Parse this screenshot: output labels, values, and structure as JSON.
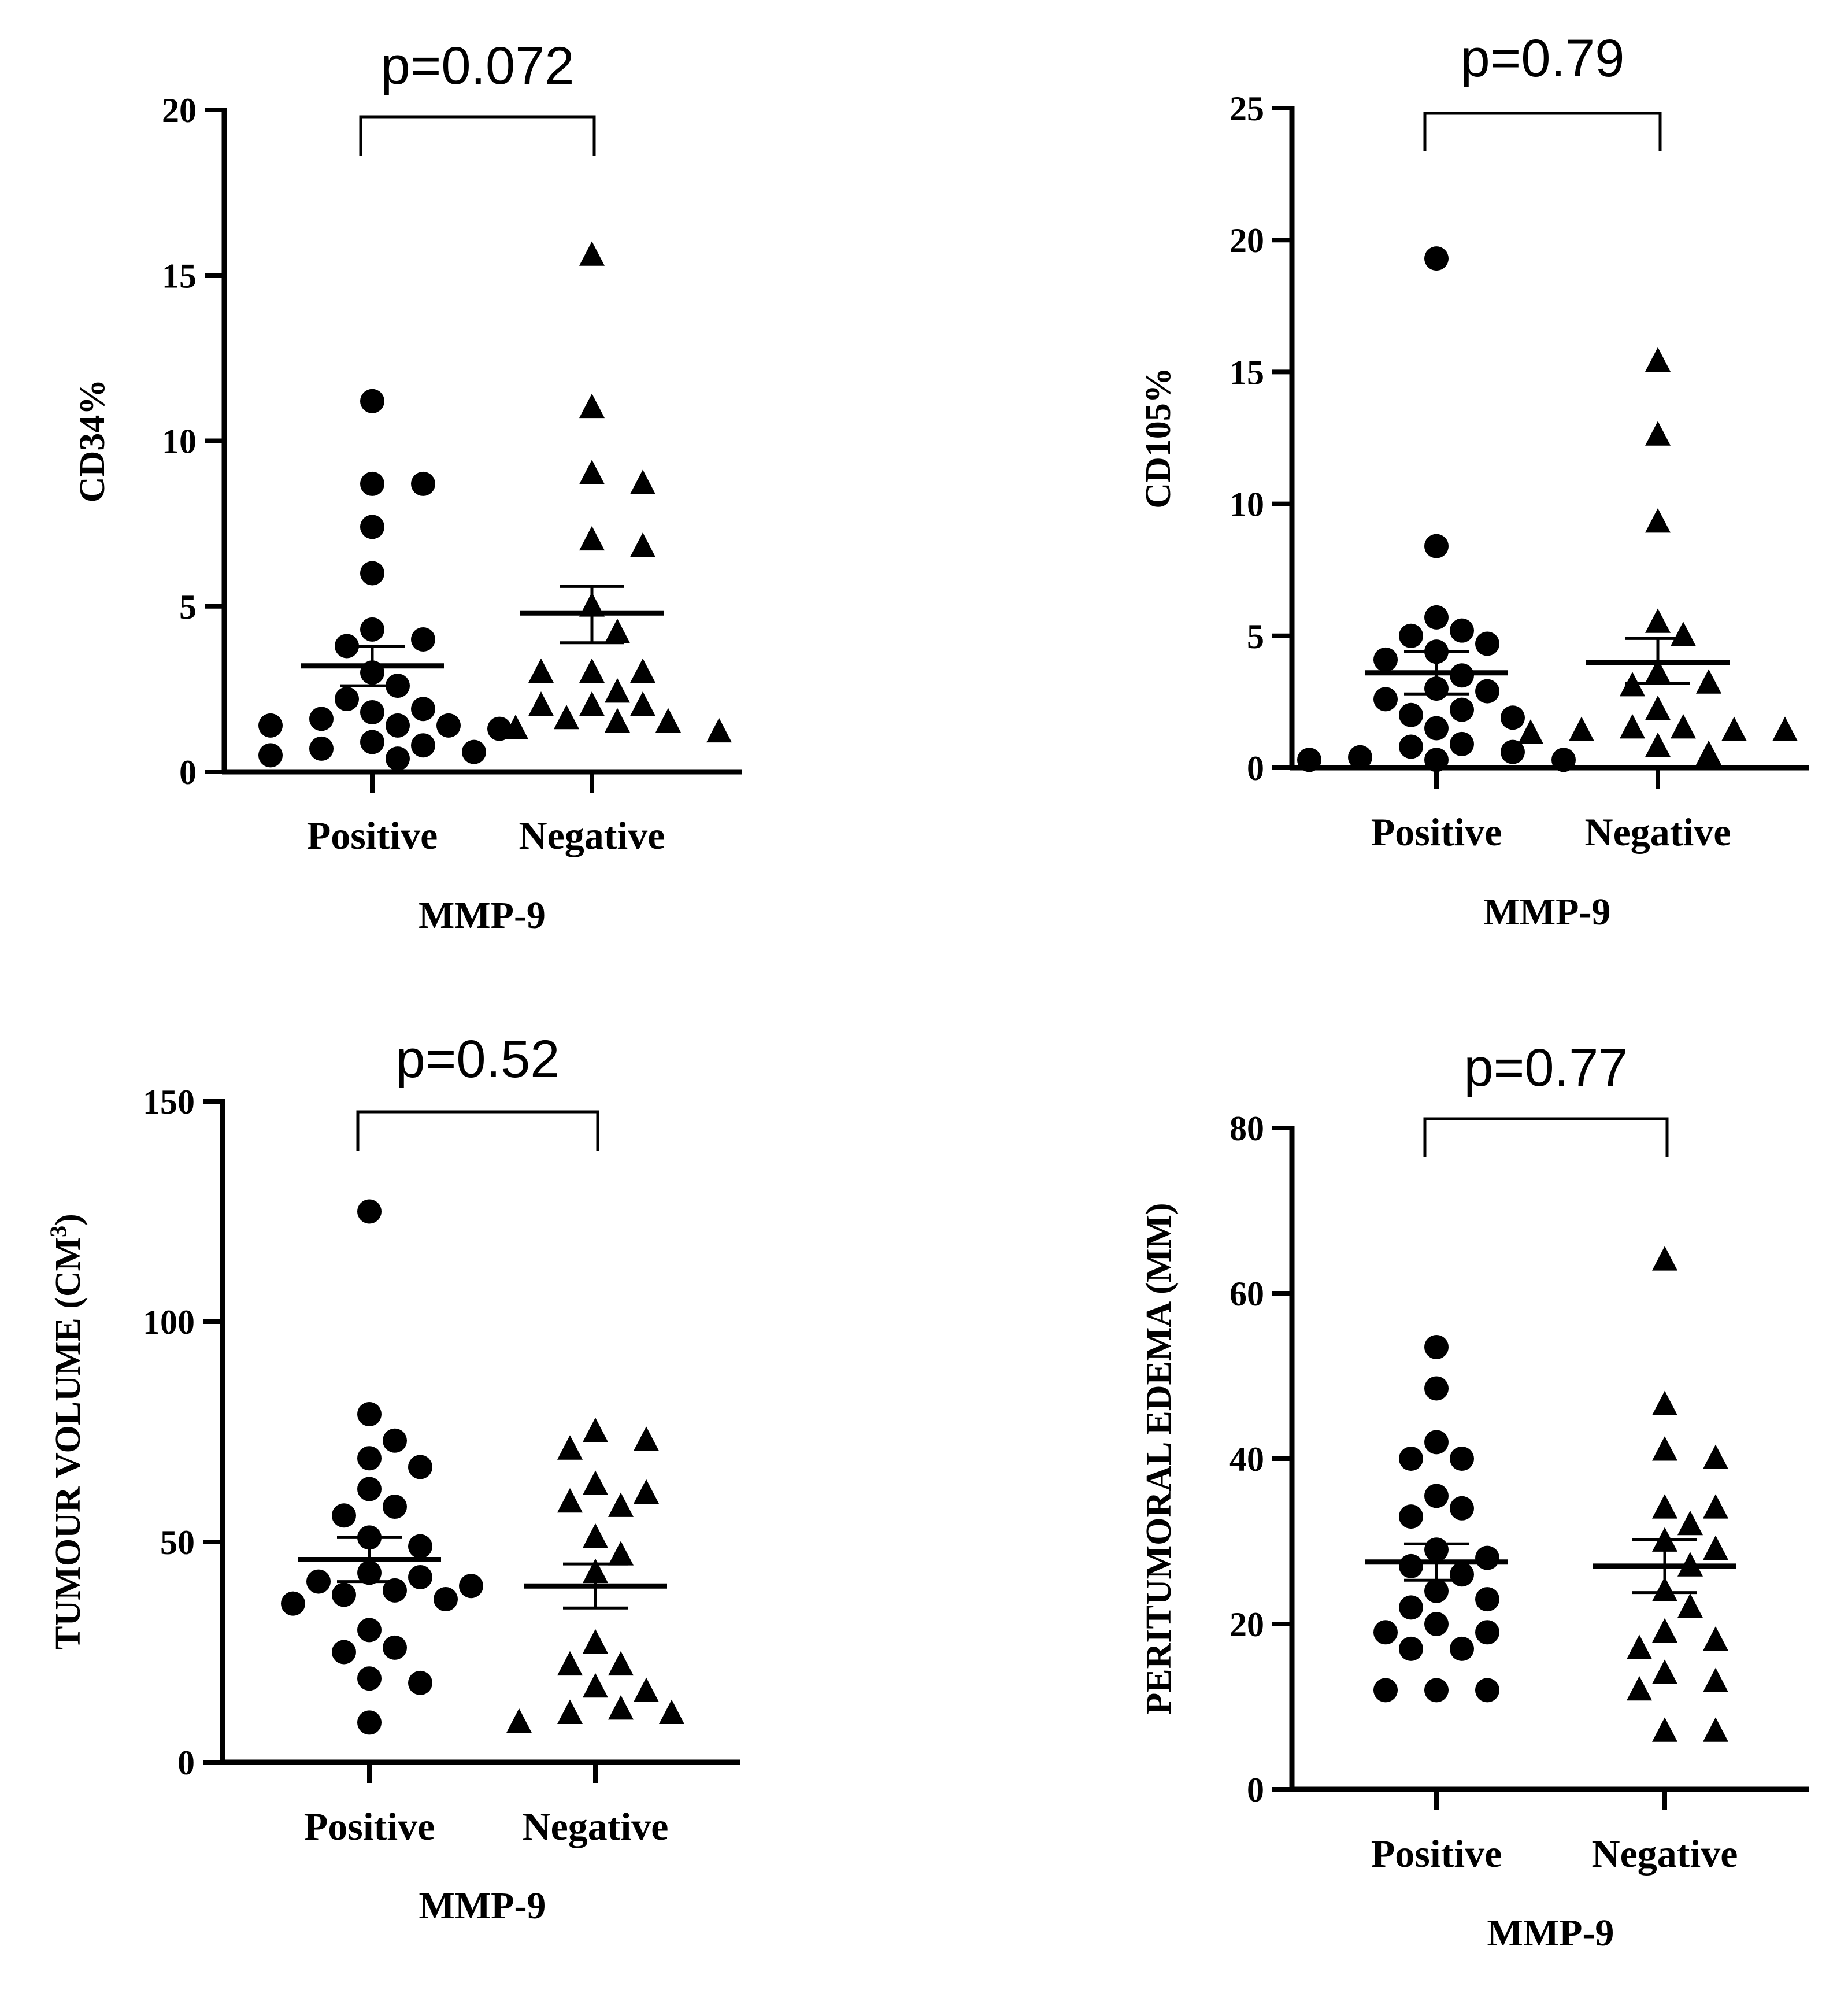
{
  "chart_data": [
    {
      "type": "scatter",
      "title": "p=0.072",
      "xlabel": "MMP-9",
      "ylabel": "CD34%",
      "ylim": [
        0,
        20
      ],
      "yticks": [
        0,
        5,
        10,
        15,
        20
      ],
      "categories": [
        "Positive",
        "Negative"
      ],
      "series": [
        {
          "category": "Positive",
          "marker": "circle",
          "mean": 3.2,
          "sem_low": 2.6,
          "sem_high": 3.8,
          "values": [
            11.2,
            8.7,
            8.7,
            7.4,
            6.0,
            4.3,
            4.0,
            3.8,
            3.0,
            2.6,
            2.2,
            1.9,
            1.8,
            1.6,
            1.4,
            1.4,
            1.4,
            1.3,
            0.9,
            0.8,
            0.7,
            0.6,
            0.5,
            0.4
          ]
        },
        {
          "category": "Negative",
          "marker": "triangle",
          "mean": 4.8,
          "sem_low": 3.9,
          "sem_high": 5.6,
          "values": [
            15.6,
            11.0,
            9.0,
            8.7,
            7.0,
            6.8,
            5.0,
            4.2,
            3.0,
            3.0,
            3.0,
            2.4,
            2.0,
            2.0,
            2.0,
            1.6,
            1.5,
            1.5,
            1.3,
            1.2
          ]
        }
      ]
    },
    {
      "type": "scatter",
      "title": "p=0.79",
      "xlabel": "MMP-9",
      "ylabel": "CD105%",
      "ylim": [
        0,
        25
      ],
      "yticks": [
        0,
        5,
        10,
        15,
        20,
        25
      ],
      "categories": [
        "Positive",
        "Negative"
      ],
      "series": [
        {
          "category": "Positive",
          "marker": "circle",
          "mean": 3.6,
          "sem_low": 2.8,
          "sem_high": 4.4,
          "values": [
            19.3,
            8.4,
            5.7,
            5.2,
            5.0,
            4.7,
            4.4,
            4.1,
            3.5,
            3.0,
            2.9,
            2.6,
            2.2,
            2.0,
            1.9,
            1.5,
            0.9,
            0.8,
            0.6,
            0.4,
            0.3,
            0.3,
            0.3
          ]
        },
        {
          "category": "Negative",
          "marker": "triangle",
          "mean": 4.0,
          "sem_low": 3.2,
          "sem_high": 4.9,
          "values": [
            15.4,
            12.6,
            9.3,
            5.5,
            5.0,
            3.6,
            3.2,
            3.1,
            2.2,
            1.5,
            1.5,
            1.4,
            1.4,
            1.4,
            1.3,
            0.8,
            0.5
          ]
        }
      ]
    },
    {
      "type": "scatter",
      "title": "p=0.52",
      "xlabel": "MMP-9",
      "ylabel": "TUMOUR VOLUME (CM",
      "ylabel_sup": "3",
      "ylabel_end": ")",
      "ylim": [
        0,
        150
      ],
      "yticks": [
        0,
        50,
        100,
        150
      ],
      "categories": [
        "Positive",
        "Negative"
      ],
      "series": [
        {
          "category": "Positive",
          "marker": "circle",
          "mean": 46,
          "sem_low": 41,
          "sem_high": 51,
          "values": [
            125,
            79,
            73,
            69,
            67,
            62,
            58,
            56,
            51,
            49,
            43,
            42,
            41,
            40,
            39,
            38,
            37,
            36,
            30,
            26,
            25,
            19,
            18,
            9
          ]
        },
        {
          "category": "Negative",
          "marker": "triangle",
          "mean": 40,
          "sem_low": 35,
          "sem_high": 45,
          "values": [
            75,
            73,
            71,
            63,
            61,
            59,
            58,
            51,
            47,
            43,
            27,
            22,
            22,
            17,
            16,
            12,
            11,
            11,
            9
          ]
        }
      ]
    },
    {
      "type": "scatter",
      "title": "p=0.77",
      "xlabel": "MMP-9",
      "ylabel": "PERITUMORAL EDEMA (MM)",
      "ylim": [
        0,
        80
      ],
      "yticks": [
        0,
        20,
        40,
        60,
        80
      ],
      "categories": [
        "Positive",
        "Negative"
      ],
      "series": [
        {
          "category": "Positive",
          "marker": "circle",
          "mean": 27.5,
          "sem_low": 25.3,
          "sem_high": 29.7,
          "values": [
            53.5,
            48.5,
            42,
            40,
            40,
            35.5,
            34,
            33,
            29,
            28,
            27,
            26,
            24,
            23,
            22,
            20,
            19,
            19,
            17,
            17,
            12,
            12,
            12
          ]
        },
        {
          "category": "Negative",
          "marker": "triangle",
          "mean": 27,
          "sem_low": 23.8,
          "sem_high": 30.2,
          "values": [
            64,
            46.5,
            41,
            40,
            34,
            34,
            32,
            30,
            29,
            27,
            24,
            22,
            19,
            18,
            17,
            14,
            13,
            12,
            7,
            7
          ]
        }
      ]
    }
  ]
}
